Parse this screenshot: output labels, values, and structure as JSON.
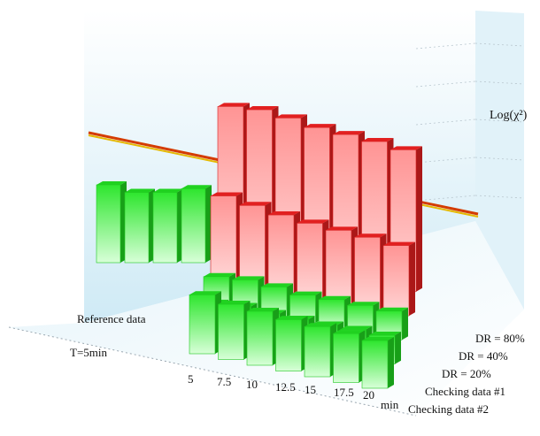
{
  "chart_data": {
    "type": "bar",
    "subtype": "3d-bar",
    "zlabel": "Log(χ²)",
    "xlabel_unit": "min",
    "x_categories": [
      "5",
      "7.5",
      "10",
      "12.5",
      "15",
      "17.5",
      "20"
    ],
    "reference": {
      "label": "Reference data",
      "category_label": "T=5min",
      "values": [
        6.2,
        5.6,
        5.6,
        5.9
      ]
    },
    "depth_categories": [
      "DR = 80%",
      "DR = 40%",
      "DR = 20%",
      "Checking data #1",
      "Checking data #2"
    ],
    "series": [
      {
        "name": "DR = 80%",
        "color": "#ee2222",
        "values": [
          12.0,
          12.2,
          12.0,
          11.7,
          11.6,
          11.5,
          11.3
        ]
      },
      {
        "name": "DR = 40%",
        "color": "#ee2222",
        "values": [
          6.8,
          6.5,
          6.2,
          6.0,
          5.9,
          5.8,
          5.6
        ]
      },
      {
        "name": "DR = 20%",
        "color": "#22dd22",
        "values": [
          2.3,
          2.5,
          2.4,
          2.2,
          2.3,
          2.3,
          2.3
        ]
      },
      {
        "name": "Checking data #1",
        "color": "#22dd22",
        "values": [
          2.1,
          2.3,
          2.2,
          2.2,
          2.2,
          2.3,
          2.3
        ]
      },
      {
        "name": "Checking data #2",
        "color": "#22dd22",
        "values": [
          4.7,
          4.4,
          4.3,
          4.1,
          4.0,
          3.9,
          3.8
        ]
      }
    ],
    "threshold": {
      "value": 7.0,
      "color": "#e6b800"
    },
    "zlim": [
      0,
      14
    ],
    "grid": true
  }
}
